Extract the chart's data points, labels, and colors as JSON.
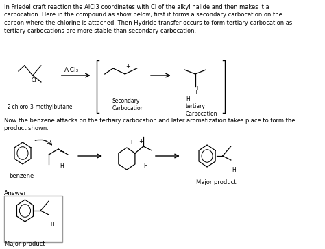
{
  "bg_color": "#ffffff",
  "text_color": "#000000",
  "paragraph1_lines": [
    "In Friedel craft reaction the AlCl3 coordinates with Cl of the alkyl halide and then makes it a",
    "carbocation. Here in the compound as show below, first it forms a secondary carbocation on the",
    "carbon where the chlorine is attached. Then Hydride transfer occurs to form tertiary carbocation as",
    "tertiary carbocations are more stable than secondary carbocation."
  ],
  "paragraph2_lines": [
    "Now the benzene attacks on the tertiary carbocation and later aromatization takes place to form the",
    "product shown."
  ],
  "label_2chloro": "2-chloro-3-methylbutane",
  "label_secondary": "Secondary\nCarbocation",
  "label_tertiary": "H\ntertiary\nCarbocation",
  "label_alcl3": "AlCl₃",
  "label_benzene": "benzene",
  "label_major": "Major product",
  "label_answer": "Answer:",
  "label_major2": "Major product",
  "box_color": "#999999",
  "fig_width": 4.74,
  "fig_height": 3.64,
  "dpi": 100
}
